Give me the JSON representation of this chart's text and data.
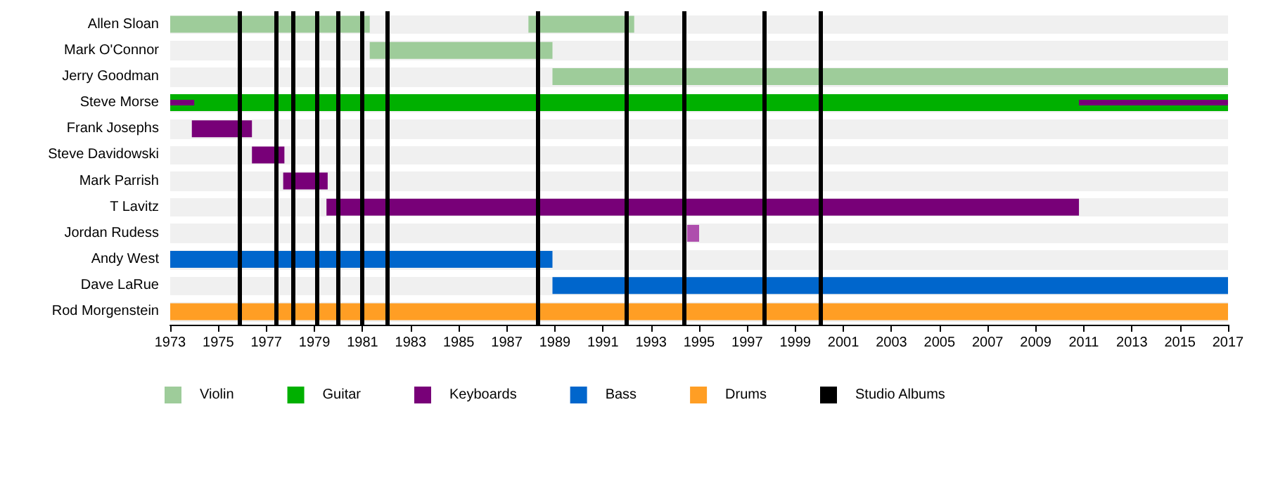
{
  "chart_data": {
    "type": "bar",
    "orientation": "horizontal",
    "categories": [
      "Allen Sloan",
      "Mark O'Connor",
      "Jerry Goodman",
      "Steve Morse",
      "Frank Josephs",
      "Steve Davidowski",
      "Mark Parrish",
      "T Lavitz",
      "Jordan Rudess",
      "Andy West",
      "Dave LaRue",
      "Rod Morgenstein"
    ],
    "series": [
      {
        "name": "Violin",
        "color": "#9ecc9a",
        "base": [
          1973,
          1981.3,
          1988.9,
          null,
          null,
          null,
          null,
          null,
          null,
          null,
          null,
          null
        ],
        "values": [
          8.3,
          7.6,
          28.1,
          null,
          null,
          null,
          null,
          null,
          null,
          null,
          null,
          null
        ]
      },
      {
        "color": "#9ecc9a",
        "base": [
          1987.9,
          null,
          null,
          null,
          null,
          null,
          null,
          null,
          null,
          null,
          null,
          null
        ],
        "values": [
          4.4,
          null,
          null,
          null,
          null,
          null,
          null,
          null,
          null,
          null,
          null,
          null
        ]
      },
      {
        "name": "Guitar",
        "color": "#00b000",
        "base": [
          null,
          null,
          null,
          1973,
          null,
          null,
          null,
          null,
          null,
          null,
          null,
          null
        ],
        "values": [
          null,
          null,
          null,
          44,
          null,
          null,
          null,
          null,
          null,
          null,
          null,
          null
        ]
      },
      {
        "name": "Keyboards",
        "color": "#780078",
        "base": [
          null,
          null,
          null,
          1973,
          1973.9,
          1976.4,
          1977.7,
          1979.5,
          null,
          null,
          null,
          null
        ],
        "values": [
          null,
          null,
          null,
          1.0,
          2.5,
          1.35,
          1.85,
          31.3,
          null,
          null,
          null,
          null
        ]
      },
      {
        "color": "#780078",
        "base": [
          null,
          null,
          null,
          2010.8,
          null,
          null,
          null,
          null,
          null,
          null,
          null,
          null
        ],
        "values": [
          null,
          null,
          null,
          6.2,
          null,
          null,
          null,
          null,
          null,
          null,
          null,
          null
        ]
      },
      {
        "color": "#ae4ead",
        "base": [
          null,
          null,
          null,
          null,
          null,
          null,
          null,
          null,
          1994.5,
          null,
          null,
          null
        ],
        "values": [
          null,
          null,
          null,
          null,
          null,
          null,
          null,
          null,
          0.5,
          null,
          null,
          null
        ]
      },
      {
        "name": "Bass",
        "color": "#0066cc",
        "base": [
          null,
          null,
          null,
          null,
          null,
          null,
          null,
          null,
          null,
          1973,
          1988.9,
          null
        ],
        "values": [
          null,
          null,
          null,
          null,
          null,
          null,
          null,
          null,
          null,
          15.9,
          28.1,
          null
        ]
      },
      {
        "name": "Drums",
        "color": "#ff9e24",
        "base": [
          null,
          null,
          null,
          null,
          null,
          null,
          null,
          null,
          null,
          null,
          null,
          1973
        ],
        "values": [
          null,
          null,
          null,
          null,
          null,
          null,
          null,
          null,
          null,
          null,
          null,
          44
        ]
      },
      {
        "name": "Studio Albums",
        "color": "#000000",
        "values": [
          null,
          null,
          null,
          null,
          null,
          null,
          null,
          null,
          null,
          null,
          null,
          null
        ]
      }
    ],
    "ref_lines": [
      {
        "axis": "x",
        "value": 1975.9,
        "color": "#000000"
      },
      {
        "axis": "x",
        "value": 1977.4,
        "color": "#000000"
      },
      {
        "axis": "x",
        "value": 1978.1,
        "color": "#000000"
      },
      {
        "axis": "x",
        "value": 1979.1,
        "color": "#000000"
      },
      {
        "axis": "x",
        "value": 1980.0,
        "color": "#000000"
      },
      {
        "axis": "x",
        "value": 1980.95,
        "color": "#000000"
      },
      {
        "axis": "x",
        "value": 1982.05,
        "color": "#000000"
      },
      {
        "axis": "x",
        "value": 1988.3,
        "color": "#000000"
      },
      {
        "axis": "x",
        "value": 1991.95,
        "color": "#000000"
      },
      {
        "axis": "x",
        "value": 1994.4,
        "color": "#000000"
      },
      {
        "axis": "x",
        "value": 1997.7,
        "color": "#000000"
      },
      {
        "axis": "x",
        "value": 2000.05,
        "color": "#000000"
      }
    ],
    "xlim": [
      1973,
      2017
    ],
    "xticks": [
      1973,
      1975,
      1977,
      1979,
      1981,
      1983,
      1985,
      1987,
      1989,
      1991,
      1993,
      1995,
      1997,
      1999,
      2001,
      2003,
      2005,
      2007,
      2009,
      2011,
      2013,
      2015,
      2017
    ],
    "legend": "bottom left"
  }
}
